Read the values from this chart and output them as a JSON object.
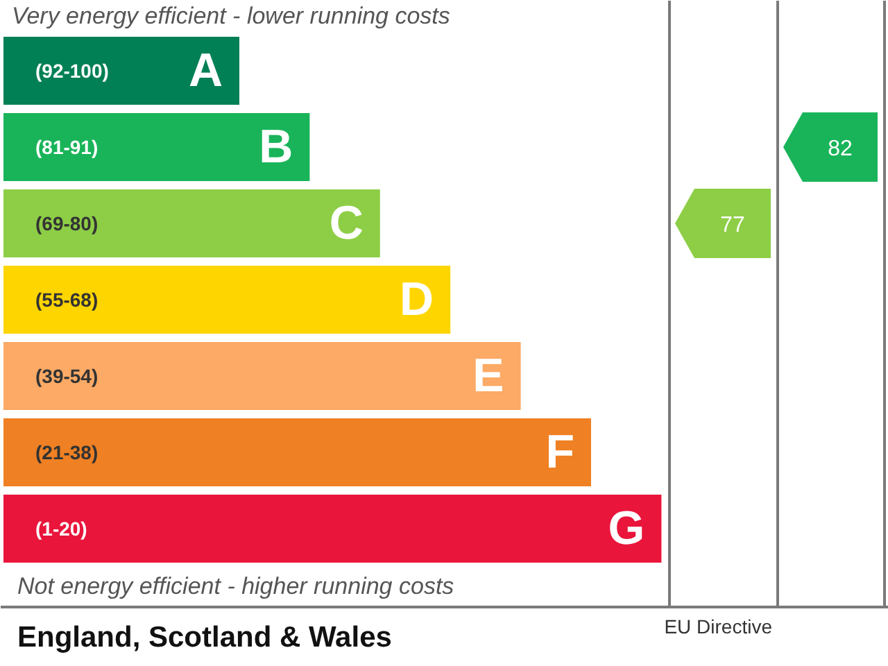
{
  "chart_data": {
    "type": "other",
    "categories": [
      "(92-100)",
      "(81-91)",
      "(69-80)",
      "(55-68)",
      "(39-54)",
      "(21-38)",
      "(1-20)"
    ],
    "colors": [
      "#008054",
      "#19b459",
      "#8dce46",
      "#ffd500",
      "#fcaa65",
      "#ef8023",
      "#e9153b"
    ],
    "series": [
      {
        "values": [
          null,
          null,
          77,
          null,
          null,
          null,
          null
        ]
      },
      {
        "values": [
          null,
          82,
          null,
          null,
          null,
          null,
          null
        ]
      }
    ],
    "data_labels": true,
    "annotations": [
      "Very energy efficient - lower running costs",
      "A",
      "B",
      "C",
      "D",
      "E",
      "F",
      "G",
      "Not energy efficient - higher running costs",
      "England, Scotland & Wales",
      "EU Directive"
    ]
  }
}
